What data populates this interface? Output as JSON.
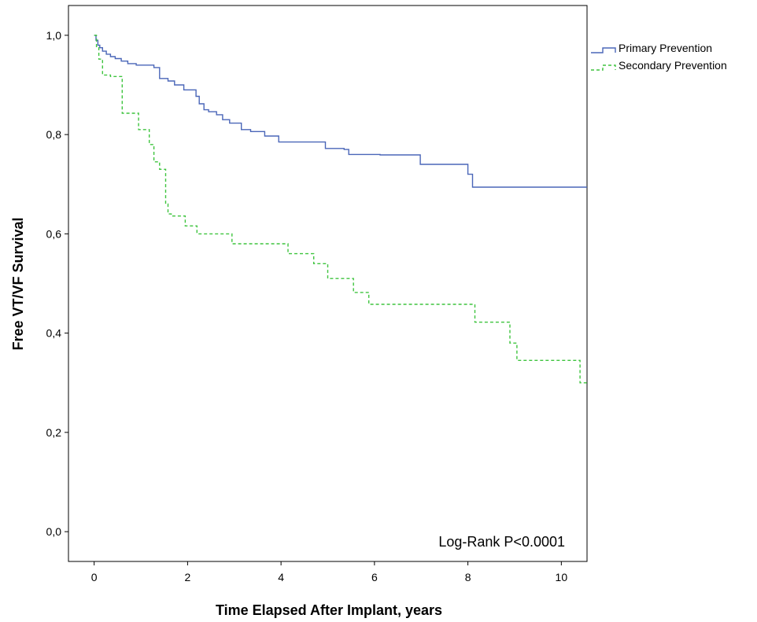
{
  "chart_data": {
    "type": "line",
    "subtype": "kaplan-meier step",
    "xlabel": "Time Elapsed After Implant, years",
    "ylabel": "Free VT/VF Survival",
    "xlim": [
      -0.55,
      10.55
    ],
    "ylim": [
      -0.06,
      1.06
    ],
    "x_ticks": [
      0,
      2,
      4,
      6,
      8,
      10
    ],
    "x_tick_labels": [
      "0",
      "2",
      "4",
      "6",
      "8",
      "10"
    ],
    "y_ticks": [
      0.0,
      0.2,
      0.4,
      0.6,
      0.8,
      1.0
    ],
    "y_tick_labels": [
      "0,0",
      "0,2",
      "0,4",
      "0,6",
      "0,8",
      "1,0"
    ],
    "grid": false,
    "legend_position": "right outside, top",
    "annotation": "Log-Rank P<0.0001",
    "series": [
      {
        "name": "Primary Prevention",
        "color": "#4a66b8",
        "style": "solid",
        "x": [
          0,
          0.04,
          0.08,
          0.12,
          0.18,
          0.26,
          0.35,
          0.45,
          0.58,
          0.72,
          0.9,
          1.28,
          1.4,
          1.58,
          1.72,
          1.92,
          2.18,
          2.25,
          2.35,
          2.45,
          2.62,
          2.75,
          2.9,
          3.15,
          3.35,
          3.65,
          3.95,
          4.45,
          4.95,
          5.35,
          5.45,
          6.12,
          6.98,
          8.0,
          8.1,
          10.55
        ],
        "y": [
          1.0,
          0.99,
          0.98,
          0.975,
          0.968,
          0.962,
          0.957,
          0.953,
          0.948,
          0.943,
          0.94,
          0.935,
          0.913,
          0.908,
          0.9,
          0.89,
          0.877,
          0.862,
          0.85,
          0.846,
          0.84,
          0.83,
          0.823,
          0.81,
          0.806,
          0.797,
          0.785,
          0.785,
          0.772,
          0.77,
          0.76,
          0.759,
          0.74,
          0.72,
          0.694,
          0.694
        ]
      },
      {
        "name": "Secondary Prevention",
        "color": "#3ec43e",
        "style": "dashed",
        "x": [
          0,
          0.05,
          0.1,
          0.18,
          0.35,
          0.6,
          0.95,
          1.18,
          1.28,
          1.4,
          1.53,
          1.58,
          1.65,
          1.95,
          2.2,
          2.95,
          4.15,
          4.7,
          5.0,
          5.55,
          5.88,
          8.15,
          8.9,
          9.05,
          10.4,
          10.55
        ],
        "y": [
          1.0,
          0.976,
          0.952,
          0.92,
          0.917,
          0.843,
          0.81,
          0.78,
          0.745,
          0.73,
          0.66,
          0.64,
          0.636,
          0.616,
          0.6,
          0.58,
          0.56,
          0.54,
          0.51,
          0.482,
          0.458,
          0.422,
          0.38,
          0.345,
          0.3,
          0.3
        ]
      }
    ]
  }
}
